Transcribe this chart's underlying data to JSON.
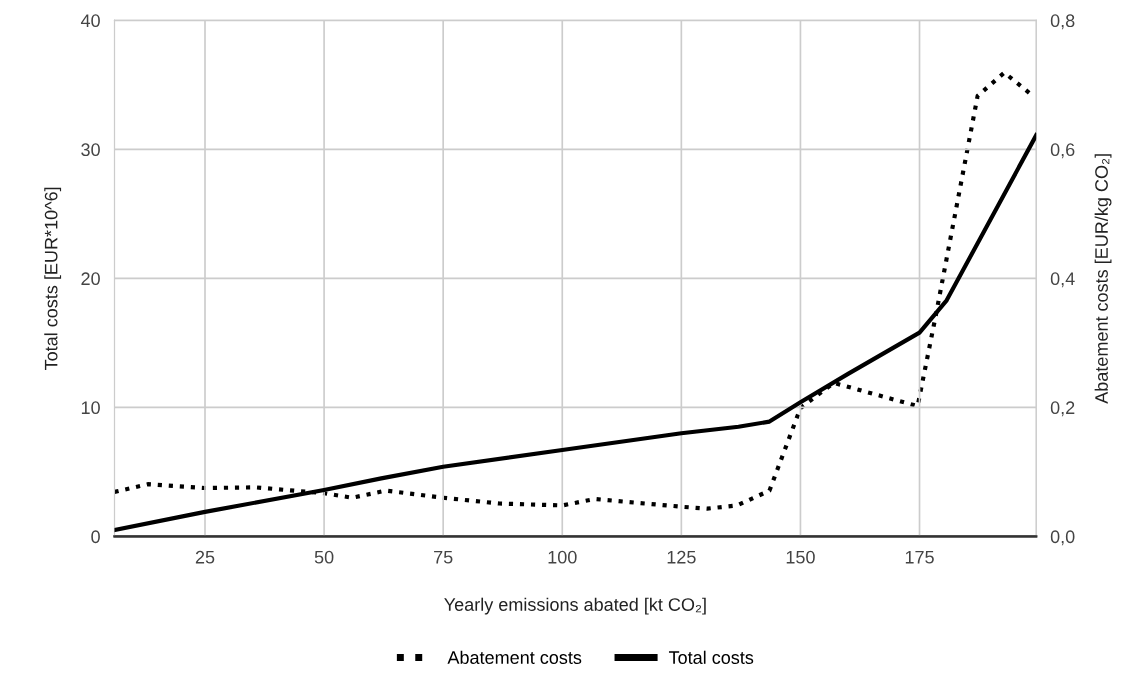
{
  "chart_data": {
    "type": "line",
    "xlabel": "Yearly emissions abated [kt CO₂]",
    "ylabel": "Total costs [EUR*10^6]",
    "y2label": "Abatement costs [EUR/kg CO₂]",
    "xlim": [
      6,
      199.5
    ],
    "xticks": [
      25,
      50,
      75,
      100,
      125,
      150,
      175
    ],
    "ylim": [
      0,
      40
    ],
    "yticks": [
      0,
      10,
      20,
      30,
      40
    ],
    "y2lim": [
      0,
      0.8
    ],
    "y2ticks": [
      {
        "value": 0,
        "label": "0,0"
      },
      {
        "value": 0.2,
        "label": "0,2"
      },
      {
        "value": 0.4,
        "label": "0,4"
      },
      {
        "value": 0.6,
        "label": "0,6"
      },
      {
        "value": 0.8,
        "label": "0,8"
      }
    ],
    "grid": true,
    "legend": "bottom",
    "series": [
      {
        "name": "Abatement costs",
        "color": "#000000",
        "axis": "y2",
        "line_style": "dotted",
        "x": [
          6,
          13,
          25,
          35.6,
          50,
          55.9,
          63,
          75,
          86.8,
          100,
          106.8,
          125,
          130.4,
          136.7,
          143.5,
          150,
          157,
          174.6,
          178.4,
          187.2,
          192.8,
          198.8
        ],
        "values": [
          0.069,
          0.081,
          0.075,
          0.076,
          0.067,
          0.06,
          0.071,
          0.06,
          0.051,
          0.048,
          0.058,
          0.046,
          0.043,
          0.048,
          0.071,
          0.199,
          0.238,
          0.202,
          0.342,
          0.683,
          0.719,
          0.683
        ]
      },
      {
        "name": "Total costs",
        "color": "#000000",
        "axis": "y",
        "line_style": "solid",
        "x": [
          6,
          25,
          50,
          62,
          75,
          100,
          125,
          137,
          143.5,
          150,
          160,
          175,
          180.7,
          199.5
        ],
        "values": [
          0.5,
          1.9,
          3.6,
          4.5,
          5.4,
          6.7,
          8.0,
          8.5,
          8.9,
          10.4,
          12.6,
          15.8,
          18.3,
          31.1
        ]
      }
    ]
  }
}
